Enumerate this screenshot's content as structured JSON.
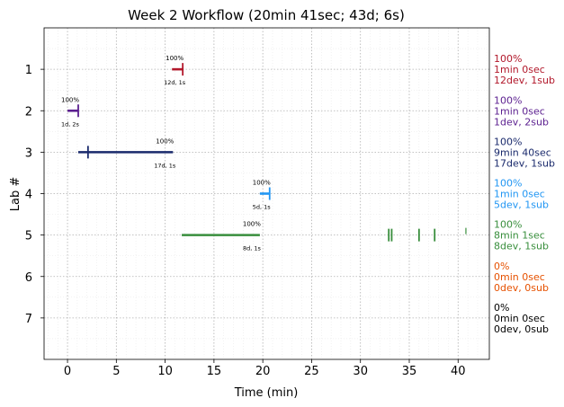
{
  "chart_data": {
    "type": "gantt",
    "title": "Week 2 Workflow (20min 41sec; 43d; 6s)",
    "xlabel": "Time (min)",
    "ylabel": "Lab #",
    "xlim": [
      -2.4,
      43.2
    ],
    "ylim": [
      8.0,
      0.0
    ],
    "x_ticks": [
      0,
      5,
      10,
      15,
      20,
      25,
      30,
      35,
      40
    ],
    "y_ticks": [
      1,
      2,
      3,
      4,
      5,
      6,
      7
    ],
    "grid": true,
    "labs": [
      {
        "lab": 1,
        "color": "#b2182b",
        "bar": [
          10.7,
          11.8
        ],
        "marks": [
          11.8
        ],
        "pct_label": "100%",
        "sub_label": "12d, 1s",
        "side": [
          "100%",
          "1min 0sec",
          "12dev, 1sub"
        ]
      },
      {
        "lab": 2,
        "color": "#5b1f8f",
        "bar": [
          0.0,
          1.1
        ],
        "marks": [
          1.1
        ],
        "pct_label": "100%",
        "sub_label": "1d, 2s",
        "side": [
          "100%",
          "1min 0sec",
          "1dev, 2sub"
        ]
      },
      {
        "lab": 3,
        "color": "#1a2a6c",
        "bar": [
          1.1,
          10.8
        ],
        "marks": [
          2.1
        ],
        "pct_label": "100%",
        "sub_label": "17d, 1s",
        "side": [
          "100%",
          "9min 40sec",
          "17dev, 1sub"
        ]
      },
      {
        "lab": 4,
        "color": "#2196f3",
        "bar": [
          19.7,
          20.7
        ],
        "marks": [
          20.7
        ],
        "pct_label": "100%",
        "sub_label": "5d, 1s",
        "side": [
          "100%",
          "1min 0sec",
          "5dev, 1sub"
        ]
      },
      {
        "lab": 5,
        "color": "#388e3c",
        "bar": [
          11.7,
          19.7
        ],
        "marks": [
          32.9,
          33.2,
          36.0,
          37.6
        ],
        "top_marks": [
          40.8
        ],
        "pct_label": "100%",
        "sub_label": "8d, 1s",
        "side": [
          "100%",
          "8min 1sec",
          "8dev, 1sub"
        ]
      },
      {
        "lab": 6,
        "color": "#e65100",
        "bar": null,
        "marks": [],
        "side": [
          "0%",
          "0min 0sec",
          "0dev, 0sub"
        ]
      },
      {
        "lab": 7,
        "color": "#000000",
        "bar": null,
        "marks": [],
        "side": [
          "0%",
          "0min 0sec",
          "0dev, 0sub"
        ]
      }
    ]
  }
}
